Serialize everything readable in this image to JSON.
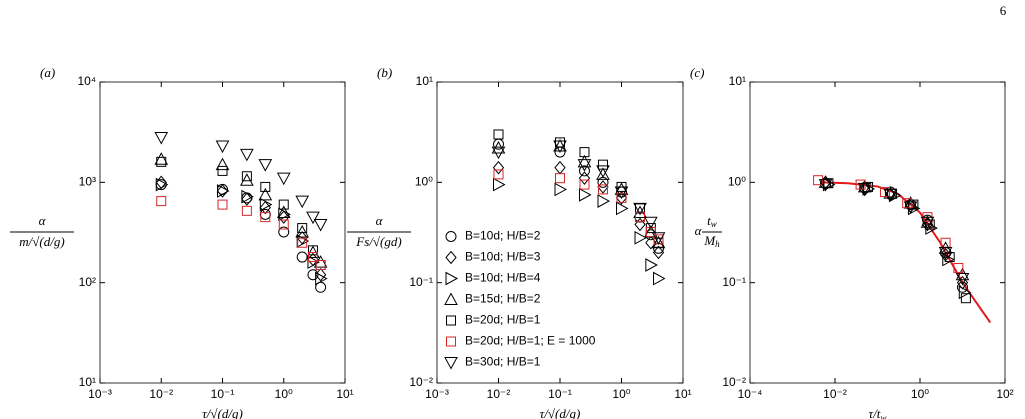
{
  "page_number": "6",
  "chart_data": [
    {
      "type": "scatter",
      "panel_label": "(a)",
      "xlabel": "τ/√(d/g)",
      "ylabel": {
        "numerator": "α",
        "denominator": "m/√(d/g)"
      },
      "log_x": true,
      "log_y": true,
      "xlim": [
        0.001,
        10
      ],
      "ylim": [
        10,
        10000
      ],
      "xticks": [
        {
          "value": 0.001,
          "label": "10⁻³"
        },
        {
          "value": 0.01,
          "label": "10⁻²"
        },
        {
          "value": 0.1,
          "label": "10⁻¹"
        },
        {
          "value": 1,
          "label": "10⁰"
        },
        {
          "value": 10,
          "label": "10¹"
        }
      ],
      "yticks": [
        {
          "value": 10,
          "label": "10¹"
        },
        {
          "value": 100,
          "label": "10²"
        },
        {
          "value": 1000,
          "label": "10³"
        },
        {
          "value": 10000,
          "label": "10⁴"
        }
      ],
      "series": [
        {
          "marker": "circle",
          "color": "#000000",
          "x": [
            0.01,
            0.1,
            0.25,
            0.5,
            1,
            2,
            3,
            4
          ],
          "values": [
            950,
            850,
            700,
            480,
            320,
            180,
            120,
            90
          ]
        },
        {
          "marker": "diamond",
          "color": "#000000",
          "x": [
            0.01,
            0.1,
            0.25,
            0.5,
            1,
            2,
            3,
            4
          ],
          "values": [
            1000,
            820,
            680,
            560,
            450,
            280,
            170,
            120
          ]
        },
        {
          "marker": "triangle-right",
          "color": "#000000",
          "x": [
            0.01,
            0.1,
            0.25,
            0.5,
            1,
            2,
            3,
            4
          ],
          "values": [
            950,
            820,
            720,
            600,
            480,
            260,
            160,
            110
          ]
        },
        {
          "marker": "triangle-up",
          "color": "#000000",
          "x": [
            0.01,
            0.1,
            0.25,
            0.5,
            1,
            2,
            3,
            4
          ],
          "values": [
            1700,
            1500,
            1050,
            750,
            500,
            320,
            200,
            160
          ]
        },
        {
          "marker": "square",
          "color": "#000000",
          "x": [
            0.01,
            0.1,
            0.25,
            0.5,
            1,
            2,
            3,
            4
          ],
          "values": [
            1600,
            1300,
            1150,
            900,
            600,
            350,
            210,
            150
          ]
        },
        {
          "marker": "square",
          "color": "#d62728",
          "x": [
            0.01,
            0.1,
            0.25,
            0.5,
            1,
            2,
            3,
            4
          ],
          "values": [
            650,
            600,
            520,
            450,
            380,
            250,
            180,
            150
          ]
        },
        {
          "marker": "triangle-down",
          "color": "#000000",
          "x": [
            0.01,
            0.1,
            0.25,
            0.5,
            1,
            2,
            3,
            4
          ],
          "values": [
            2800,
            2300,
            1900,
            1500,
            1100,
            650,
            450,
            380
          ]
        }
      ]
    },
    {
      "type": "scatter",
      "panel_label": "(b)",
      "xlabel": "τ/√(d/g)",
      "ylabel": {
        "numerator": "α",
        "denominator": "Fs/√(gd)"
      },
      "log_x": true,
      "log_y": true,
      "legend": "lower left",
      "xlim": [
        0.001,
        10
      ],
      "ylim": [
        0.01,
        10
      ],
      "xticks": [
        {
          "value": 0.001,
          "label": "10⁻³"
        },
        {
          "value": 0.01,
          "label": "10⁻²"
        },
        {
          "value": 0.1,
          "label": "10⁻¹"
        },
        {
          "value": 1,
          "label": "10⁰"
        },
        {
          "value": 10,
          "label": "10¹"
        }
      ],
      "yticks": [
        {
          "value": 0.01,
          "label": "10⁻²"
        },
        {
          "value": 0.1,
          "label": "10⁻¹"
        },
        {
          "value": 1,
          "label": "10⁰"
        },
        {
          "value": 10,
          "label": "10¹"
        }
      ],
      "series": [
        {
          "name": "B=10d; H/B=2",
          "marker": "circle",
          "color": "#000000",
          "x": [
            0.01,
            0.1,
            0.25,
            0.5,
            1,
            2,
            3,
            4
          ],
          "values": [
            2.4,
            2.0,
            1.3,
            1.0,
            0.8,
            0.45,
            0.3,
            0.22
          ]
        },
        {
          "name": "B=10d; H/B=3",
          "marker": "diamond",
          "color": "#000000",
          "x": [
            0.01,
            0.1,
            0.25,
            0.5,
            1,
            2,
            3,
            4
          ],
          "values": [
            1.4,
            1.4,
            1.1,
            0.9,
            0.7,
            0.38,
            0.25,
            0.2
          ]
        },
        {
          "name": "B=10d; H/B=4",
          "marker": "triangle-right",
          "color": "#000000",
          "x": [
            0.01,
            0.1,
            0.25,
            0.5,
            1,
            2,
            3,
            4
          ],
          "values": [
            0.95,
            0.85,
            0.75,
            0.65,
            0.55,
            0.28,
            0.15,
            0.11
          ]
        },
        {
          "name": "B=15d; H/B=2",
          "marker": "triangle-up",
          "color": "#000000",
          "x": [
            0.01,
            0.1,
            0.25,
            0.5,
            1,
            2,
            3,
            4
          ],
          "values": [
            2.2,
            2.3,
            1.6,
            1.2,
            0.85,
            0.5,
            0.32,
            0.25
          ]
        },
        {
          "name": "B=20d; H/B=1",
          "marker": "square",
          "color": "#000000",
          "x": [
            0.01,
            0.1,
            0.25,
            0.5,
            1,
            2,
            3,
            4
          ],
          "values": [
            3.0,
            2.5,
            2.0,
            1.5,
            0.9,
            0.55,
            0.35,
            0.25
          ]
        },
        {
          "name": "B=20d; H/B=1; E = 1000",
          "marker": "square",
          "color": "#d62728",
          "x": [
            0.01,
            0.1,
            0.25,
            0.5,
            1,
            2,
            3,
            4
          ],
          "values": [
            1.2,
            1.1,
            0.95,
            0.85,
            0.7,
            0.45,
            0.32,
            0.27
          ]
        },
        {
          "name": "B=30d; H/B=1",
          "marker": "triangle-down",
          "color": "#000000",
          "x": [
            0.01,
            0.1,
            0.25,
            0.5,
            1,
            2,
            3,
            4
          ],
          "values": [
            2.0,
            2.3,
            1.5,
            1.3,
            0.8,
            0.55,
            0.4,
            0.28
          ]
        }
      ]
    },
    {
      "type": "scatter",
      "panel_label": "(c)",
      "xlabel": {
        "main": "τ/t",
        "sub": "w"
      },
      "ylabel": {
        "prefix": "α",
        "numerator": "t",
        "numerator_sub": "w",
        "denominator": "M",
        "denominator_sub": "h"
      },
      "log_x": true,
      "log_y": true,
      "xlim": [
        0.0001,
        100
      ],
      "ylim": [
        0.01,
        10
      ],
      "xticks": [
        {
          "value": 0.0001,
          "label": "10⁻⁴"
        },
        {
          "value": 0.01,
          "label": "10⁻²"
        },
        {
          "value": 1,
          "label": "10⁰"
        },
        {
          "value": 100,
          "label": "10²"
        }
      ],
      "yticks": [
        {
          "value": 0.01,
          "label": "10⁻²"
        },
        {
          "value": 0.1,
          "label": "10⁻¹"
        },
        {
          "value": 1,
          "label": "10⁰"
        },
        {
          "value": 10,
          "label": "10¹"
        }
      ],
      "series": [
        {
          "marker": "circle",
          "color": "#000000",
          "x": [
            0.006,
            0.05,
            0.2,
            0.6,
            1.5,
            4,
            10
          ],
          "values": [
            0.97,
            0.88,
            0.8,
            0.6,
            0.42,
            0.2,
            0.09
          ]
        },
        {
          "marker": "diamond",
          "color": "#000000",
          "x": [
            0.006,
            0.05,
            0.2,
            0.6,
            1.5,
            4,
            10
          ],
          "values": [
            1.0,
            0.85,
            0.75,
            0.58,
            0.38,
            0.19,
            0.1
          ]
        },
        {
          "marker": "triangle-right",
          "color": "#000000",
          "x": [
            0.007,
            0.06,
            0.25,
            0.7,
            1.8,
            4.5,
            11
          ],
          "values": [
            0.95,
            0.86,
            0.74,
            0.55,
            0.35,
            0.17,
            0.08
          ]
        },
        {
          "marker": "triangle-up",
          "color": "#000000",
          "x": [
            0.006,
            0.05,
            0.2,
            0.6,
            1.5,
            4,
            10
          ],
          "values": [
            1.0,
            0.9,
            0.78,
            0.62,
            0.4,
            0.22,
            0.12
          ]
        },
        {
          "marker": "square",
          "color": "#000000",
          "x": [
            0.007,
            0.06,
            0.22,
            0.7,
            1.7,
            5,
            12
          ],
          "values": [
            0.98,
            0.9,
            0.77,
            0.6,
            0.38,
            0.18,
            0.07
          ]
        },
        {
          "marker": "square",
          "color": "#d62728",
          "x": [
            0.004,
            0.04,
            0.15,
            0.5,
            1.5,
            4,
            8
          ],
          "values": [
            1.05,
            0.95,
            0.8,
            0.62,
            0.45,
            0.25,
            0.14
          ]
        },
        {
          "marker": "triangle-down",
          "color": "#000000",
          "x": [
            0.006,
            0.05,
            0.2,
            0.6,
            1.5,
            4,
            10
          ],
          "values": [
            0.95,
            0.87,
            0.76,
            0.57,
            0.4,
            0.2,
            0.11
          ]
        }
      ],
      "curve": {
        "color": "#e31a1c",
        "x": [
          0.005,
          0.02,
          0.1,
          0.3,
          1,
          3,
          10,
          45
        ],
        "values": [
          1.0,
          0.98,
          0.91,
          0.77,
          0.5,
          0.25,
          0.1,
          0.04
        ]
      }
    }
  ]
}
